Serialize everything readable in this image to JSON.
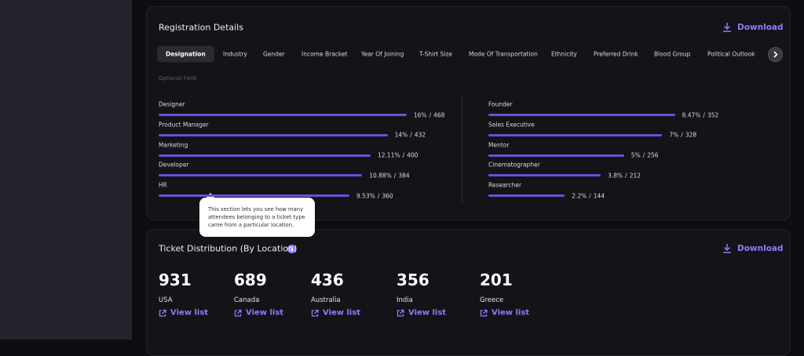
{
  "registration": {
    "title": "Registration Details",
    "download": "Download",
    "tabs": [
      "Designation",
      "Industry",
      "Gender",
      "Income Bracket",
      "Year Of Joining",
      "T-Shirt Size",
      "Mode Of Transportation",
      "Ethnicity",
      "Preferred Drink",
      "Blood Group",
      "Political Outlook"
    ],
    "note": "Optional Field",
    "separator": "/",
    "left": [
      {
        "label": "Designer",
        "percent": "16%",
        "count": 468
      },
      {
        "label": "Product Manager",
        "percent": "14%",
        "count": 432
      },
      {
        "label": "Marketing",
        "percent": "12.11%",
        "count": 400
      },
      {
        "label": "Developer",
        "percent": "10.88%",
        "count": 384
      },
      {
        "label": "HR",
        "percent": "9.53%",
        "count": 360
      }
    ],
    "right": [
      {
        "label": "Founder",
        "percent": "8.47%",
        "count": 352
      },
      {
        "label": "Sales Executive",
        "percent": "7%",
        "count": 328
      },
      {
        "label": "Mentor",
        "percent": "5%",
        "count": 256
      },
      {
        "label": "Cinematographer",
        "percent": "3.8%",
        "count": 212
      },
      {
        "label": "Researcher",
        "percent": "2.2%",
        "count": 144
      }
    ]
  },
  "tooltip": {
    "lines": [
      "This section lets you see how many",
      "attendees belonging to a ticket type",
      "came from a particular location."
    ]
  },
  "tickets": {
    "title": "Ticket Distribution (By Location)",
    "download": "Download",
    "action": "View list",
    "locations": [
      {
        "count": 931,
        "name": "USA"
      },
      {
        "count": 689,
        "name": "Canada"
      },
      {
        "count": 436,
        "name": "Australia"
      },
      {
        "count": 356,
        "name": "India"
      },
      {
        "count": 201,
        "name": "Greece"
      }
    ]
  }
}
